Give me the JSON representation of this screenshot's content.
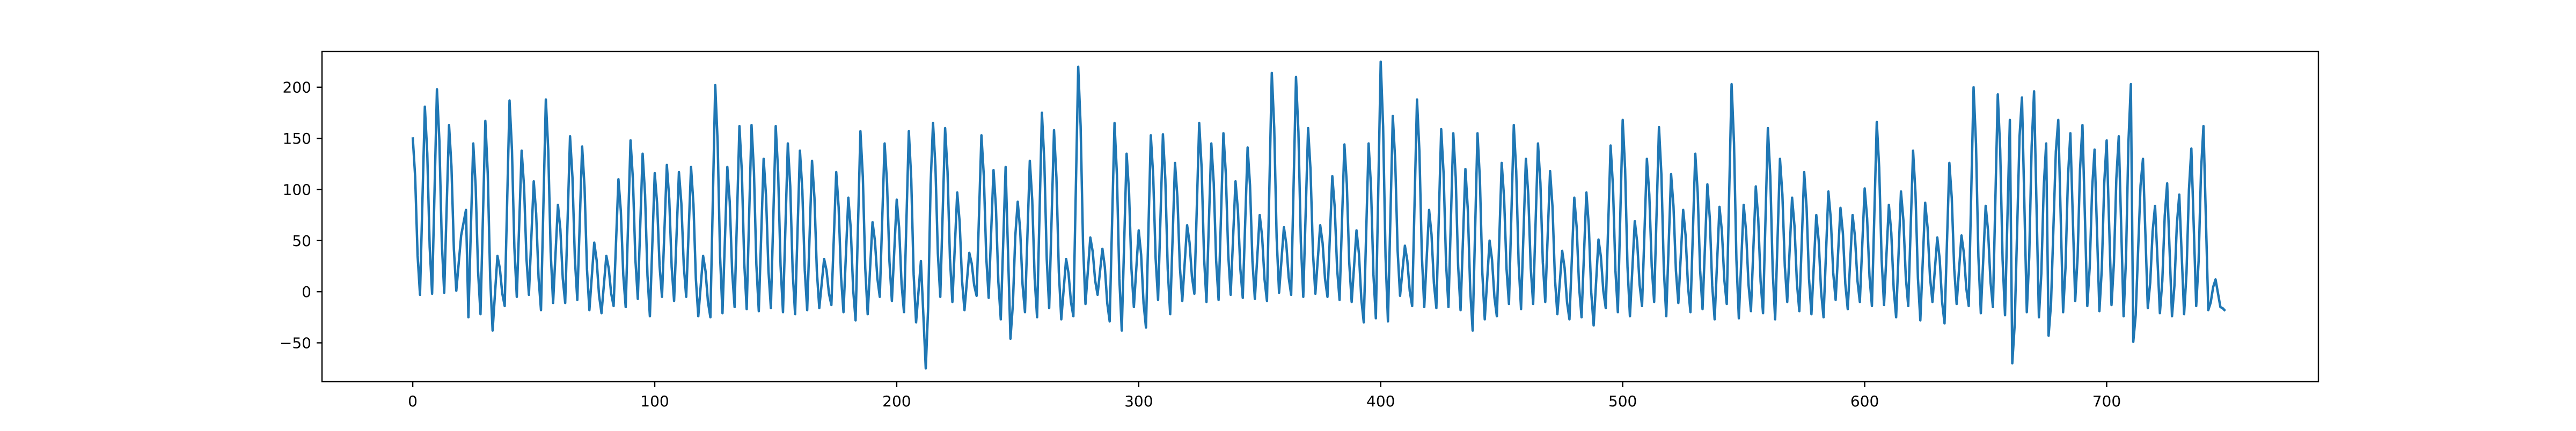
{
  "chart_data": {
    "type": "line",
    "title": "",
    "xlabel": "",
    "ylabel": "",
    "xlim": [
      -37.5,
      787.5
    ],
    "ylim": [
      -88,
      235
    ],
    "x_ticks": [
      0,
      100,
      200,
      300,
      400,
      500,
      600,
      700
    ],
    "y_ticks": [
      -50,
      0,
      50,
      100,
      150,
      200
    ],
    "x_tick_labels": [
      "0",
      "100",
      "200",
      "300",
      "400",
      "500",
      "600",
      "700"
    ],
    "y_tick_labels": [
      "−50",
      "0",
      "50",
      "100",
      "150",
      "200"
    ],
    "grid": false,
    "legend": "none",
    "n_points": 750,
    "series": [
      {
        "color": "#1f77b4",
        "x_start": 0,
        "x_step": 1,
        "peaks": [
          [
            0,
            151
          ],
          [
            5,
            181
          ],
          [
            10,
            198
          ],
          [
            15,
            163
          ],
          [
            20,
            55
          ],
          [
            22,
            80
          ],
          [
            25,
            145
          ],
          [
            30,
            167
          ],
          [
            35,
            35
          ],
          [
            40,
            187
          ],
          [
            45,
            138
          ],
          [
            50,
            108
          ],
          [
            55,
            188
          ],
          [
            60,
            85
          ],
          [
            65,
            152
          ],
          [
            70,
            142
          ],
          [
            75,
            48
          ],
          [
            80,
            35
          ],
          [
            85,
            110
          ],
          [
            90,
            148
          ],
          [
            95,
            135
          ],
          [
            100,
            116
          ],
          [
            105,
            124
          ],
          [
            110,
            117
          ],
          [
            115,
            122
          ],
          [
            120,
            35
          ],
          [
            125,
            202
          ],
          [
            130,
            122
          ],
          [
            135,
            162
          ],
          [
            140,
            163
          ],
          [
            145,
            130
          ],
          [
            150,
            162
          ],
          [
            155,
            145
          ],
          [
            160,
            138
          ],
          [
            165,
            128
          ],
          [
            170,
            32
          ],
          [
            175,
            117
          ],
          [
            180,
            92
          ],
          [
            185,
            157
          ],
          [
            190,
            68
          ],
          [
            195,
            145
          ],
          [
            200,
            90
          ],
          [
            205,
            157
          ],
          [
            210,
            30
          ],
          [
            215,
            165
          ],
          [
            220,
            160
          ],
          [
            225,
            97
          ],
          [
            230,
            38
          ],
          [
            235,
            153
          ],
          [
            240,
            119
          ],
          [
            245,
            122
          ],
          [
            250,
            88
          ],
          [
            255,
            128
          ],
          [
            260,
            175
          ],
          [
            265,
            158
          ],
          [
            270,
            32
          ],
          [
            275,
            220
          ],
          [
            280,
            53
          ],
          [
            285,
            42
          ],
          [
            290,
            165
          ],
          [
            295,
            135
          ],
          [
            300,
            60
          ],
          [
            305,
            153
          ],
          [
            310,
            154
          ],
          [
            315,
            126
          ],
          [
            320,
            65
          ],
          [
            325,
            165
          ],
          [
            330,
            145
          ],
          [
            335,
            155
          ],
          [
            340,
            108
          ],
          [
            345,
            141
          ],
          [
            350,
            75
          ],
          [
            355,
            214
          ],
          [
            360,
            63
          ],
          [
            365,
            210
          ],
          [
            370,
            160
          ],
          [
            375,
            65
          ],
          [
            380,
            113
          ],
          [
            385,
            144
          ],
          [
            390,
            60
          ],
          [
            395,
            145
          ],
          [
            400,
            225
          ],
          [
            405,
            172
          ],
          [
            410,
            45
          ],
          [
            415,
            188
          ],
          [
            420,
            80
          ],
          [
            425,
            159
          ],
          [
            430,
            155
          ],
          [
            435,
            120
          ],
          [
            440,
            155
          ],
          [
            445,
            50
          ],
          [
            450,
            126
          ],
          [
            455,
            163
          ],
          [
            460,
            130
          ],
          [
            465,
            145
          ],
          [
            470,
            118
          ],
          [
            475,
            40
          ],
          [
            480,
            92
          ],
          [
            485,
            97
          ],
          [
            490,
            51
          ],
          [
            495,
            143
          ],
          [
            500,
            168
          ],
          [
            505,
            69
          ],
          [
            510,
            130
          ],
          [
            515,
            161
          ],
          [
            520,
            115
          ],
          [
            525,
            80
          ],
          [
            530,
            135
          ],
          [
            535,
            105
          ],
          [
            540,
            83
          ],
          [
            545,
            203
          ],
          [
            550,
            85
          ],
          [
            555,
            103
          ],
          [
            560,
            160
          ],
          [
            565,
            130
          ],
          [
            570,
            92
          ],
          [
            575,
            117
          ],
          [
            580,
            75
          ],
          [
            585,
            98
          ],
          [
            590,
            82
          ],
          [
            595,
            75
          ],
          [
            600,
            101
          ],
          [
            605,
            166
          ],
          [
            610,
            85
          ],
          [
            615,
            98
          ],
          [
            620,
            138
          ],
          [
            625,
            87
          ],
          [
            630,
            53
          ],
          [
            635,
            126
          ],
          [
            640,
            55
          ],
          [
            645,
            200
          ],
          [
            650,
            84
          ],
          [
            655,
            193
          ],
          [
            660,
            168
          ],
          [
            665,
            190
          ],
          [
            670,
            196
          ],
          [
            675,
            145
          ],
          [
            680,
            168
          ],
          [
            685,
            155
          ],
          [
            690,
            163
          ],
          [
            695,
            139
          ],
          [
            700,
            148
          ],
          [
            705,
            152
          ],
          [
            710,
            203
          ],
          [
            715,
            130
          ],
          [
            720,
            84
          ],
          [
            725,
            106
          ],
          [
            730,
            95
          ],
          [
            735,
            140
          ],
          [
            740,
            162
          ],
          [
            745,
            12
          ],
          [
            750,
            -20
          ]
        ],
        "troughs": [
          [
            3,
            -3
          ],
          [
            8,
            -2
          ],
          [
            13,
            -1
          ],
          [
            18,
            1
          ],
          [
            23,
            -25
          ],
          [
            28,
            -22
          ],
          [
            33,
            -38
          ],
          [
            38,
            -14
          ],
          [
            43,
            -5
          ],
          [
            48,
            -3
          ],
          [
            53,
            -18
          ],
          [
            58,
            -11
          ],
          [
            63,
            -11
          ],
          [
            68,
            -8
          ],
          [
            73,
            -18
          ],
          [
            78,
            -21
          ],
          [
            83,
            -14
          ],
          [
            88,
            -15
          ],
          [
            93,
            -7
          ],
          [
            98,
            -24
          ],
          [
            103,
            -5
          ],
          [
            108,
            -9
          ],
          [
            113,
            -5
          ],
          [
            118,
            -24
          ],
          [
            123,
            -25
          ],
          [
            128,
            -21
          ],
          [
            133,
            -15
          ],
          [
            138,
            -17
          ],
          [
            143,
            -19
          ],
          [
            148,
            -16
          ],
          [
            153,
            -20
          ],
          [
            158,
            -22
          ],
          [
            163,
            -18
          ],
          [
            168,
            -16
          ],
          [
            173,
            -13
          ],
          [
            178,
            -20
          ],
          [
            183,
            -28
          ],
          [
            188,
            -22
          ],
          [
            193,
            -5
          ],
          [
            198,
            -9
          ],
          [
            203,
            -20
          ],
          [
            208,
            -30
          ],
          [
            212,
            -75
          ],
          [
            218,
            -5
          ],
          [
            223,
            -10
          ],
          [
            228,
            -18
          ],
          [
            233,
            -4
          ],
          [
            238,
            -6
          ],
          [
            243,
            -27
          ],
          [
            247,
            -46
          ],
          [
            253,
            -20
          ],
          [
            258,
            -25
          ],
          [
            263,
            -16
          ],
          [
            268,
            -27
          ],
          [
            273,
            -24
          ],
          [
            278,
            -12
          ],
          [
            283,
            -3
          ],
          [
            288,
            -29
          ],
          [
            293,
            -38
          ],
          [
            298,
            -15
          ],
          [
            303,
            -35
          ],
          [
            308,
            -8
          ],
          [
            313,
            -22
          ],
          [
            318,
            -9
          ],
          [
            323,
            -2
          ],
          [
            328,
            -10
          ],
          [
            333,
            -8
          ],
          [
            338,
            -3
          ],
          [
            343,
            -6
          ],
          [
            348,
            -7
          ],
          [
            353,
            -9
          ],
          [
            358,
            -1
          ],
          [
            363,
            -3
          ],
          [
            368,
            -5
          ],
          [
            373,
            -2
          ],
          [
            378,
            -5
          ],
          [
            383,
            -8
          ],
          [
            388,
            -10
          ],
          [
            393,
            -30
          ],
          [
            398,
            -26
          ],
          [
            403,
            -29
          ],
          [
            408,
            -4
          ],
          [
            413,
            -14
          ],
          [
            418,
            -15
          ],
          [
            423,
            -16
          ],
          [
            428,
            -15
          ],
          [
            433,
            -18
          ],
          [
            438,
            -38
          ],
          [
            443,
            -27
          ],
          [
            448,
            -24
          ],
          [
            453,
            -12
          ],
          [
            458,
            -17
          ],
          [
            463,
            -12
          ],
          [
            468,
            -10
          ],
          [
            473,
            -22
          ],
          [
            478,
            -27
          ],
          [
            483,
            -25
          ],
          [
            488,
            -33
          ],
          [
            493,
            -16
          ],
          [
            498,
            -20
          ],
          [
            503,
            -24
          ],
          [
            508,
            -14
          ],
          [
            513,
            -10
          ],
          [
            518,
            -24
          ],
          [
            523,
            -11
          ],
          [
            528,
            -20
          ],
          [
            533,
            -17
          ],
          [
            538,
            -27
          ],
          [
            543,
            -12
          ],
          [
            548,
            -26
          ],
          [
            553,
            -19
          ],
          [
            558,
            -21
          ],
          [
            563,
            -27
          ],
          [
            568,
            -10
          ],
          [
            573,
            -19
          ],
          [
            578,
            -22
          ],
          [
            583,
            -25
          ],
          [
            588,
            -8
          ],
          [
            593,
            -17
          ],
          [
            598,
            -10
          ],
          [
            603,
            -14
          ],
          [
            608,
            -13
          ],
          [
            613,
            -25
          ],
          [
            618,
            -14
          ],
          [
            623,
            -28
          ],
          [
            628,
            -10
          ],
          [
            633,
            -31
          ],
          [
            638,
            -12
          ],
          [
            643,
            -14
          ],
          [
            648,
            -21
          ],
          [
            653,
            -15
          ],
          [
            658,
            -23
          ],
          [
            661,
            -70
          ],
          [
            667,
            -20
          ],
          [
            672,
            -25
          ],
          [
            676,
            -43
          ],
          [
            682,
            -20
          ],
          [
            687,
            -9
          ],
          [
            692,
            -14
          ],
          [
            697,
            -19
          ],
          [
            702,
            -13
          ],
          [
            707,
            -24
          ],
          [
            711,
            -49
          ],
          [
            717,
            -16
          ],
          [
            722,
            -21
          ],
          [
            727,
            -24
          ],
          [
            732,
            -22
          ],
          [
            737,
            -14
          ],
          [
            742,
            -18
          ],
          [
            747,
            -15
          ]
        ]
      }
    ]
  }
}
